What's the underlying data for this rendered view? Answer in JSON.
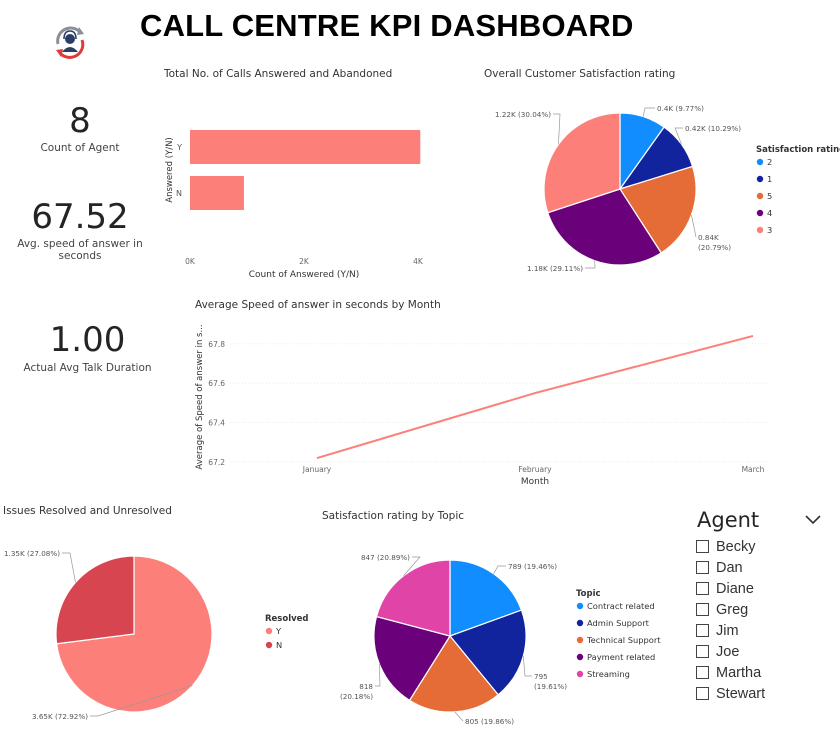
{
  "header": {
    "title": "CALL CENTRE KPI DASHBOARD",
    "logo_icon": "call-centre-agent-icon"
  },
  "kpis": [
    {
      "value": "8",
      "label": "Count of Agent"
    },
    {
      "value": "67.52",
      "label": "Avg. speed of answer in seconds"
    },
    {
      "value": "1.00",
      "label": "Actual Avg Talk Duration"
    }
  ],
  "chart_data": [
    {
      "type": "bar",
      "orientation": "horizontal",
      "title": "Total No. of Calls Answered and Abandoned",
      "xlabel": "Count of Answered (Y/N)",
      "ylabel": "Answered (Y/N)",
      "categories": [
        "Y",
        "N"
      ],
      "values": [
        4054,
        946
      ],
      "xlim": [
        0,
        4000
      ],
      "xticks": [
        "0K",
        "2K",
        "4K"
      ],
      "color": "#FD7F79"
    },
    {
      "type": "pie",
      "title": "Overall Customer Satisfaction rating",
      "legend_title": "Satisfaction rating",
      "legend_position": "right",
      "labels": [
        "2",
        "1",
        "5",
        "4",
        "3"
      ],
      "values": [
        0.4,
        0.42,
        0.84,
        1.18,
        1.22
      ],
      "data_labels": [
        "0.4K (9.77%)",
        "0.42K (10.29%)",
        "0.84K (20.79%)",
        "1.18K (29.11%)",
        "1.22K (30.04%)"
      ],
      "percents": [
        9.77,
        10.29,
        20.79,
        29.11,
        30.04
      ],
      "colors": [
        "#118DFF",
        "#12239E",
        "#E66C37",
        "#6B007B",
        "#FD7F79"
      ]
    },
    {
      "type": "line",
      "title": "Average Speed of answer in seconds by Month",
      "xlabel": "Month",
      "ylabel": "Average of Speed of answer in s...",
      "x": [
        "January",
        "February",
        "March"
      ],
      "values": [
        67.22,
        67.55,
        67.84
      ],
      "ylim": [
        67.2,
        67.86
      ],
      "yticks": [
        "67.2",
        "67.4",
        "67.6",
        "67.8"
      ],
      "color": "#FD7F79",
      "grid": true
    },
    {
      "type": "pie",
      "title": "Issues Resolved and Unresolved",
      "legend_title": "Resolved",
      "legend_position": "right",
      "labels": [
        "Y",
        "N"
      ],
      "values": [
        3.65,
        1.35
      ],
      "data_labels": [
        "3.65K (72.92%)",
        "1.35K (27.08%)"
      ],
      "percents": [
        72.92,
        27.08
      ],
      "colors": [
        "#FD7F79",
        "#D64550"
      ]
    },
    {
      "type": "pie",
      "title": "Satisfaction rating by Topic",
      "legend_title": "Topic",
      "legend_position": "right",
      "labels": [
        "Contract related",
        "Admin Support",
        "Technical Support",
        "Payment related",
        "Streaming"
      ],
      "values": [
        789,
        795,
        805,
        818,
        847
      ],
      "data_labels": [
        "789 (19.46%)",
        "795 (19.61%)",
        "805 (19.86%)",
        "818 (20.18%)",
        "847 (20.89%)"
      ],
      "percents": [
        19.46,
        19.61,
        19.86,
        20.18,
        20.89
      ],
      "colors": [
        "#118DFF",
        "#12239E",
        "#E66C37",
        "#6B007B",
        "#E044A7"
      ]
    }
  ],
  "slicer": {
    "title": "Agent",
    "chevron_icon": "chevron-down-icon",
    "items": [
      "Becky",
      "Dan",
      "Diane",
      "Greg",
      "Jim",
      "Joe",
      "Martha",
      "Stewart"
    ]
  }
}
